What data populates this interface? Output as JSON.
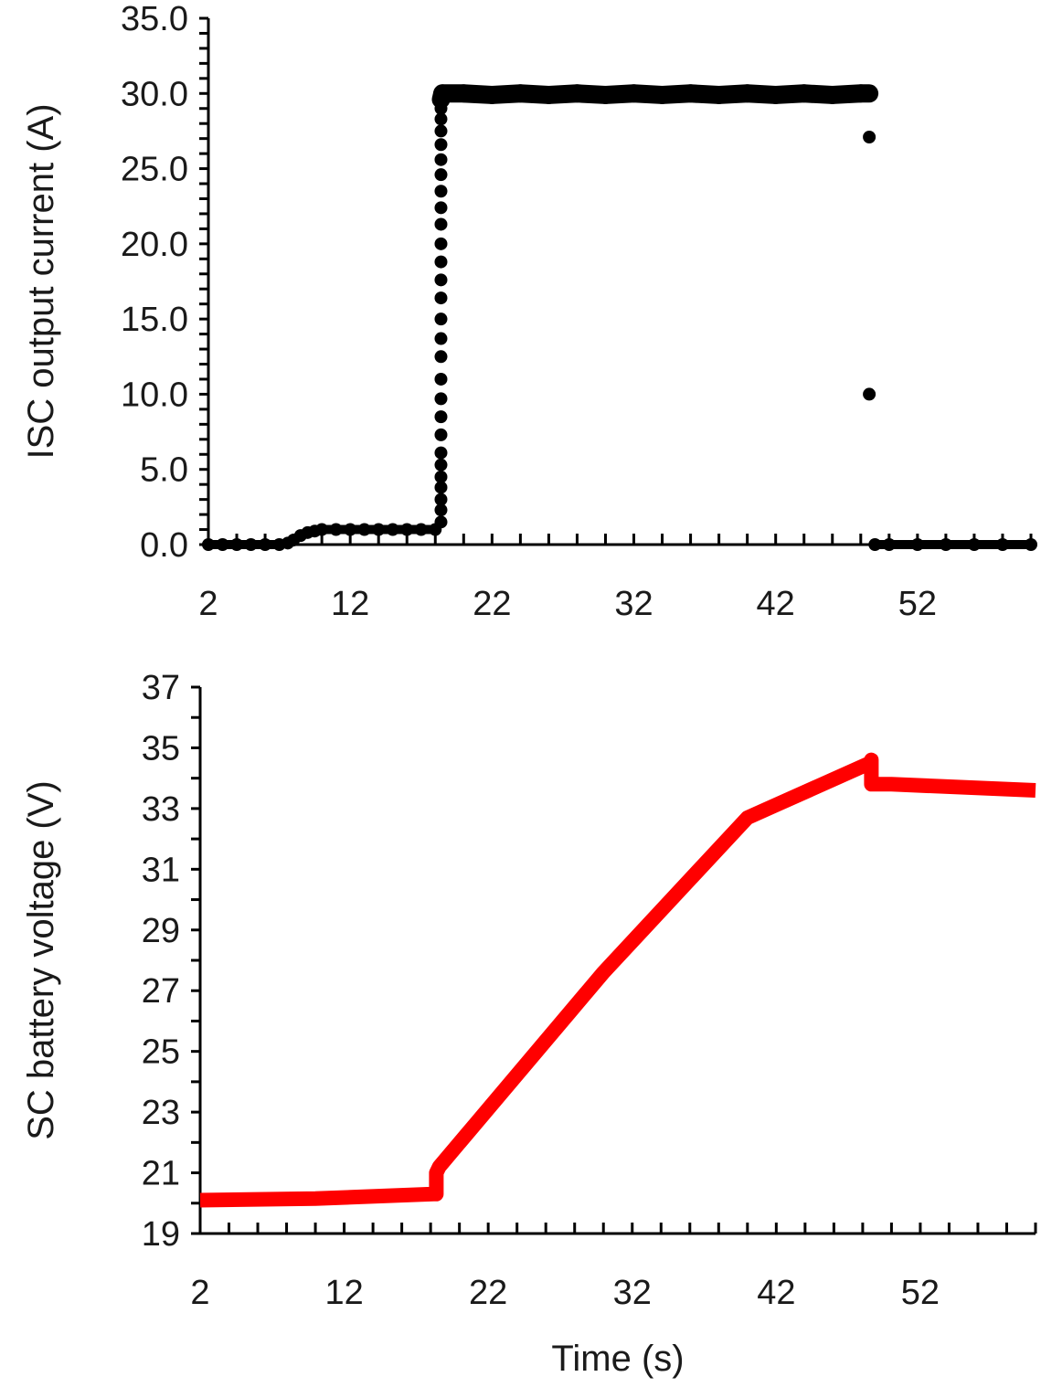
{
  "chart_data": [
    {
      "type": "scatter",
      "title": "",
      "xlabel": "",
      "ylabel": "ISC output current (A)",
      "xlim": [
        2,
        60
      ],
      "ylim": [
        0,
        35
      ],
      "x_ticks": [
        2,
        12,
        22,
        32,
        42,
        52
      ],
      "y_ticks": [
        "0.0",
        "5.0",
        "10.0",
        "15.0",
        "20.0",
        "25.0",
        "30.0",
        "35.0"
      ],
      "x_minor_step": 2,
      "y_minor_step": 1,
      "grid": false,
      "legend": "none",
      "series": [
        {
          "color": "#000000",
          "marker": "circle",
          "points": [
            [
              2,
              0
            ],
            [
              3,
              0
            ],
            [
              4,
              0
            ],
            [
              5,
              0
            ],
            [
              6,
              0
            ],
            [
              7,
              0
            ],
            [
              7.6,
              0.1
            ],
            [
              8,
              0.3
            ],
            [
              8.5,
              0.6
            ],
            [
              9,
              0.8
            ],
            [
              9.5,
              0.9
            ],
            [
              10,
              1.0
            ],
            [
              11,
              1.0
            ],
            [
              12,
              1.0
            ],
            [
              13,
              1.0
            ],
            [
              14,
              1.0
            ],
            [
              15,
              1.0
            ],
            [
              16,
              1.0
            ],
            [
              17,
              1.0
            ],
            [
              18,
              1.0
            ],
            [
              18.4,
              1.5
            ],
            [
              18.4,
              2.3
            ],
            [
              18.4,
              3.0
            ],
            [
              18.4,
              3.8
            ],
            [
              18.4,
              4.5
            ],
            [
              18.4,
              5.3
            ],
            [
              18.4,
              6.1
            ],
            [
              18.4,
              7.3
            ],
            [
              18.4,
              8.5
            ],
            [
              18.4,
              9.7
            ],
            [
              18.4,
              11.0
            ],
            [
              18.4,
              12.5
            ],
            [
              18.4,
              13.7
            ],
            [
              18.4,
              15.0
            ],
            [
              18.4,
              16.4
            ],
            [
              18.4,
              17.6
            ],
            [
              18.4,
              18.8
            ],
            [
              18.4,
              20.0
            ],
            [
              18.4,
              21.3
            ],
            [
              18.4,
              22.4
            ],
            [
              18.4,
              23.5
            ],
            [
              18.4,
              24.6
            ],
            [
              18.4,
              25.6
            ],
            [
              18.4,
              26.6
            ],
            [
              18.4,
              27.5
            ],
            [
              18.4,
              28.3
            ],
            [
              18.4,
              29.0
            ],
            [
              18.4,
              29.6
            ],
            [
              18.5,
              30.0
            ],
            [
              20,
              30.0
            ],
            [
              22,
              29.9
            ],
            [
              24,
              30.0
            ],
            [
              26,
              29.9
            ],
            [
              28,
              30.0
            ],
            [
              30,
              29.9
            ],
            [
              32,
              30.0
            ],
            [
              34,
              29.9
            ],
            [
              36,
              30.0
            ],
            [
              38,
              29.9
            ],
            [
              40,
              30.0
            ],
            [
              42,
              29.9
            ],
            [
              44,
              30.0
            ],
            [
              46,
              29.9
            ],
            [
              48,
              30.0
            ],
            [
              48.6,
              30.0
            ],
            [
              48.6,
              27.1
            ],
            [
              48.6,
              10.0
            ],
            [
              49,
              0
            ],
            [
              50,
              0
            ],
            [
              52,
              0
            ],
            [
              54,
              0
            ],
            [
              56,
              0
            ],
            [
              58,
              0
            ],
            [
              60,
              0
            ]
          ]
        }
      ]
    },
    {
      "type": "line",
      "title": "",
      "xlabel": "Time (s)",
      "ylabel": "SC battery voltage (V)",
      "xlim": [
        2,
        60
      ],
      "ylim": [
        19,
        37
      ],
      "x_ticks": [
        2,
        12,
        22,
        32,
        42,
        52
      ],
      "y_ticks": [
        19,
        21,
        23,
        25,
        27,
        29,
        31,
        33,
        35,
        37
      ],
      "x_minor_step": 2,
      "y_minor_step": 1,
      "grid": false,
      "legend": "none",
      "series": [
        {
          "color": "#ff0000",
          "points": [
            [
              2,
              20.1
            ],
            [
              10,
              20.15
            ],
            [
              18.2,
              20.3
            ],
            [
              18.4,
              20.3
            ],
            [
              18.4,
              21.0
            ],
            [
              18.6,
              21.2
            ],
            [
              30,
              27.6
            ],
            [
              40,
              32.7
            ],
            [
              48.5,
              34.5
            ],
            [
              48.6,
              34.6
            ],
            [
              48.6,
              33.8
            ],
            [
              50,
              33.8
            ],
            [
              60,
              33.6
            ]
          ]
        }
      ]
    }
  ]
}
